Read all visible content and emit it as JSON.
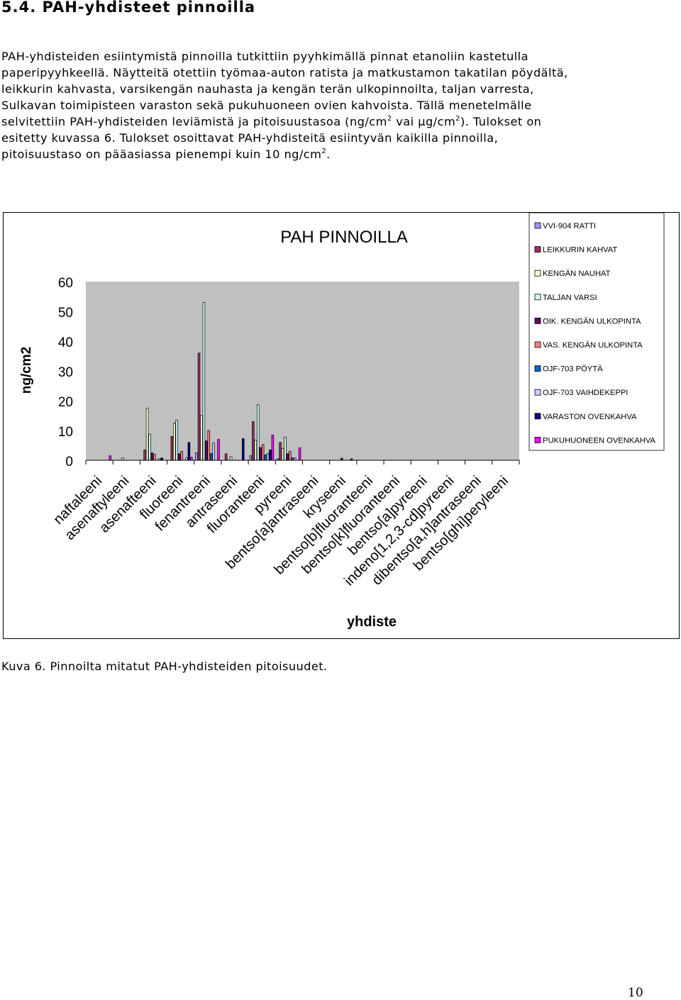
{
  "heading": "5.4. PAH-yhdisteet pinnoilla",
  "paragraph": {
    "l1": "PAH-yhdisteiden esiintymistä pinnoilla tutkittiin pyyhkimällä pinnat etanoliin kastetulla",
    "l2": "paperipyyhkeellä. Näytteitä otettiin työmaa-auton ratista ja matkustamon takatilan pöydältä,",
    "l3": "leikkurin kahvasta, varsikengän nauhasta ja kengän terän ulkopinnoilta, taljan varresta,",
    "l4": "Sulkavan toimipisteen varaston sekä pukuhuoneen ovien kahvoista. Tällä menetelmälle",
    "l5a": "selvitettiin PAH-yhdisteiden leviämistä ja pitoisuustasoa (ng/cm",
    "l5sup1": "2",
    "l5b": " vai µg/cm",
    "l5sup2": "2",
    "l5c": "). Tulokset on",
    "l6": "esitetty kuvassa 6. Tulokset osoittavat PAH-yhdisteitä esiintyvän kaikilla pinnoilla,",
    "l7a": "pitoisuustaso on pääasiassa pienempi kuin 10 ng/cm",
    "l7sup": "2",
    "l7b": "."
  },
  "caption": "Kuva 6. Pinnoilta mitatut PAH-yhdisteiden pitoisuudet.",
  "page_number": "10",
  "chart_data": {
    "type": "bar",
    "title": "PAH PINNOILLA",
    "xlabel": "yhdiste",
    "ylabel": "ng/cm2",
    "ylim": [
      0,
      60
    ],
    "yticks": [
      "0",
      "10",
      "20",
      "30",
      "40",
      "50",
      "60"
    ],
    "grid": false,
    "legend_position": "right",
    "categories": [
      "naftaleeni",
      "asenaftyleeni",
      "asenafteeni",
      "fluoreeni",
      "fenantreeni",
      "antraseeni",
      "fluoranteeni",
      "pyreeni",
      "bentso[a]antraseeni",
      "kryseeni",
      "bentso[b]fluoranteeni",
      "bentso[k]fluoranteeni",
      "bentso[a]pyreeni",
      "indeno[1,2,3-cd]pyreeni",
      "dibentso[a,h]antraseeni",
      "bentso[ghi]peryleeni"
    ],
    "series": [
      {
        "name": "VVI-904 RATTI",
        "color": "#9999ff",
        "values": [
          0,
          0,
          0,
          0,
          2.5,
          0,
          1.5,
          0.5,
          0,
          0,
          0,
          0,
          0,
          0,
          0,
          0
        ]
      },
      {
        "name": "LEIKKURIN KAHVAT",
        "color": "#993366",
        "values": [
          0,
          0,
          3.5,
          8,
          36,
          2.2,
          13,
          6,
          0,
          0,
          0,
          0,
          0,
          0,
          0,
          0
        ]
      },
      {
        "name": "KENGÄN NAUHAT",
        "color": "#ffffcc",
        "values": [
          0,
          0,
          17.5,
          12.5,
          15,
          0,
          6.8,
          4,
          0,
          0,
          0,
          0,
          0,
          0,
          0,
          0
        ]
      },
      {
        "name": "TALJAN VARSI",
        "color": "#ccffff",
        "values": [
          0,
          0.8,
          8.8,
          13.5,
          53,
          1.2,
          18.7,
          7.8,
          0,
          0,
          0,
          0,
          0,
          0,
          0,
          0
        ]
      },
      {
        "name": "OIK. KENGÄN ULKOPINTA",
        "color": "#660066",
        "values": [
          0,
          0,
          2.5,
          2.2,
          6.5,
          0,
          4.3,
          2.2,
          0,
          0.7,
          0,
          0,
          0,
          0,
          0,
          0
        ]
      },
      {
        "name": "VAS. KENGÄN ULKOPINTA",
        "color": "#ff8080",
        "values": [
          0,
          0,
          2,
          3,
          10,
          0,
          5.3,
          3,
          0,
          0,
          0,
          0,
          0,
          0,
          0,
          0
        ]
      },
      {
        "name": "OJF-703 PÖYTÄ",
        "color": "#0066cc",
        "values": [
          0,
          0,
          0,
          0,
          2.3,
          0,
          1.8,
          0.8,
          0,
          0,
          0,
          0,
          0,
          0,
          0,
          0
        ]
      },
      {
        "name": "OJF-703 VAIHDEKEPPI",
        "color": "#ccccff",
        "values": [
          0,
          0,
          0.5,
          0.8,
          5.8,
          0,
          2.2,
          0.8,
          0,
          0,
          0,
          0,
          0,
          0,
          0,
          0
        ]
      },
      {
        "name": "VARASTON OVENKAHVA",
        "color": "#000080",
        "values": [
          0,
          0,
          0.8,
          6,
          0,
          7.3,
          3.5,
          0,
          0,
          0.5,
          0,
          0,
          0,
          0,
          0,
          0
        ]
      },
      {
        "name": "PUKUHUONEEN OVENKAHVA",
        "color": "#ff00ff",
        "values": [
          1.5,
          0,
          0,
          1,
          7,
          0,
          8.5,
          4.2,
          0,
          0,
          0,
          0,
          0,
          0,
          0,
          0
        ]
      }
    ]
  }
}
